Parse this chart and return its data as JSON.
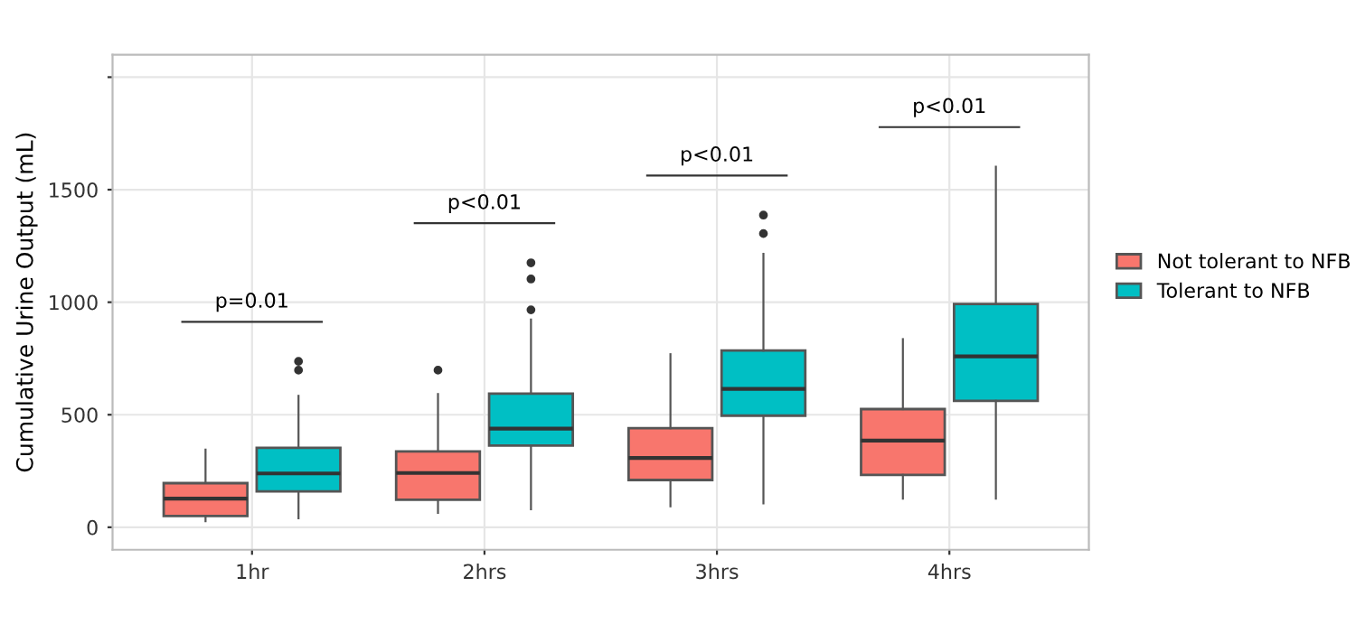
{
  "chart_data": {
    "type": "box",
    "ylabel": "Cumulative Urine Output (mL)",
    "categories": [
      "1hr",
      "2hrs",
      "3hrs",
      "4hrs"
    ],
    "ylim": [
      -100,
      2100
    ],
    "yticks": [
      0,
      500,
      1000,
      1500,
      {
        "value": 2000,
        "label": null
      }
    ],
    "grid": true,
    "legend": "right",
    "series": [
      {
        "name": "Not tolerant to NFB",
        "color": "#f8766d",
        "boxes": [
          {
            "low": 27,
            "q1": 50,
            "median": 127,
            "q3": 196,
            "high": 345
          },
          {
            "low": 64,
            "q1": 122,
            "median": 241,
            "q3": 337,
            "high": 592,
            "outliers": [
              698
            ]
          },
          {
            "low": 93,
            "q1": 210,
            "median": 308,
            "q3": 440,
            "high": 769
          },
          {
            "low": 127,
            "q1": 233,
            "median": 385,
            "q3": 525,
            "high": 836
          }
        ]
      },
      {
        "name": "Tolerant to NFB",
        "color": "#00bfc4",
        "boxes": [
          {
            "low": 40,
            "q1": 159,
            "median": 239,
            "q3": 353,
            "high": 584,
            "outliers": [
              698,
              737
            ]
          },
          {
            "low": 80,
            "q1": 363,
            "median": 438,
            "q3": 594,
            "high": 923,
            "outliers": [
              966,
              1103,
              1175
            ]
          },
          {
            "low": 106,
            "q1": 496,
            "median": 615,
            "q3": 785,
            "high": 1215,
            "outliers": [
              1305,
              1387
            ]
          },
          {
            "low": 127,
            "q1": 562,
            "median": 759,
            "q3": 992,
            "high": 1602
          }
        ]
      }
    ],
    "annotations": [
      "p=0.01",
      "p<0.01",
      "p<0.01",
      "p<0.01"
    ]
  }
}
